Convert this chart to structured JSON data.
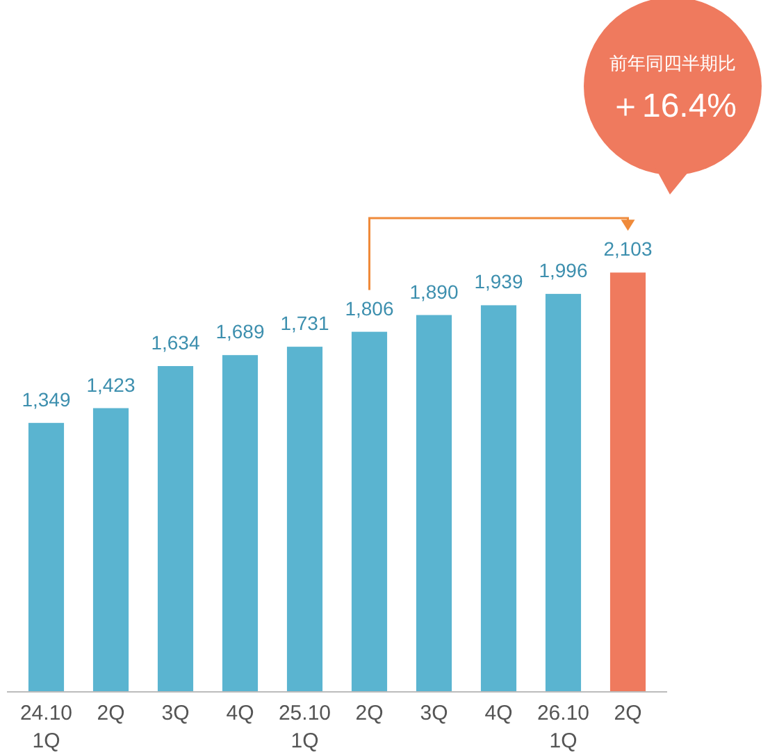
{
  "chart_data": {
    "type": "bar",
    "categories": [
      "24.10\n1Q",
      "2Q",
      "3Q",
      "4Q",
      "25.10\n1Q",
      "2Q",
      "3Q",
      "4Q",
      "26.10\n1Q",
      "2Q"
    ],
    "values": [
      1349,
      1423,
      1634,
      1689,
      1731,
      1806,
      1890,
      1939,
      1996,
      2103
    ],
    "colors": [
      "#5ab4d0",
      "#5ab4d0",
      "#5ab4d0",
      "#5ab4d0",
      "#5ab4d0",
      "#5ab4d0",
      "#5ab4d0",
      "#5ab4d0",
      "#5ab4d0",
      "#ef7a5e"
    ],
    "value_labels": [
      "1,349",
      "1,423",
      "1,634",
      "1,689",
      "1,731",
      "1,806",
      "1,890",
      "1,939",
      "1,996",
      "2,103"
    ],
    "annotations": [
      "前年同四半期比",
      "＋16.4%"
    ]
  }
}
